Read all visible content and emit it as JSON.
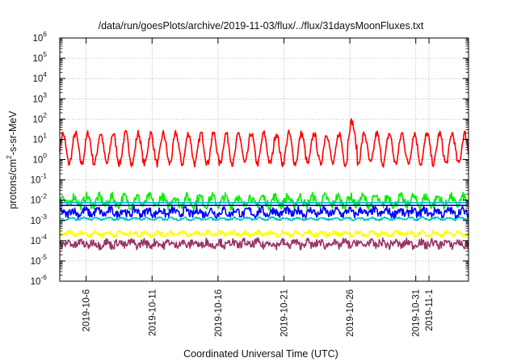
{
  "chart_data": {
    "type": "line",
    "title": "/data/run/goesPlots/archive/2019-11-03/flux/../flux/31daysMoonFluxes.txt",
    "xlabel": "Coordinated Universal Time (UTC)",
    "ylabel": "protons/cm2-s-sr-MeV",
    "ylabel_parts": {
      "main": "protons/cm",
      "sup": "2",
      "rest": "-s-sr-MeV"
    },
    "yscale": "log",
    "ylim": [
      1e-06,
      1000000.0
    ],
    "y_ticks": [
      {
        "base": "10",
        "exp": "-6"
      },
      {
        "base": "10",
        "exp": "-5"
      },
      {
        "base": "10",
        "exp": "-4"
      },
      {
        "base": "10",
        "exp": "-3"
      },
      {
        "base": "10",
        "exp": "-2"
      },
      {
        "base": "10",
        "exp": "-1"
      },
      {
        "base": "10",
        "exp": "0"
      },
      {
        "base": "10",
        "exp": "1"
      },
      {
        "base": "10",
        "exp": "2"
      },
      {
        "base": "10",
        "exp": "3"
      },
      {
        "base": "10",
        "exp": "4"
      },
      {
        "base": "10",
        "exp": "5"
      },
      {
        "base": "10",
        "exp": "6"
      }
    ],
    "xlim": [
      "2019-10-04",
      "2019-11-04"
    ],
    "x_ticks": [
      "2019-10-6",
      "2019-10-11",
      "2019-10-16",
      "2019-10-21",
      "2019-10-26",
      "2019-10-31",
      "2019-11-1"
    ],
    "grid": true,
    "series": [
      {
        "color": "#ff0000",
        "median": 3.5,
        "amplitude_dex": 0.75,
        "noise_dex": 0.18
      },
      {
        "color": "#00ee00",
        "median": 0.009,
        "amplitude_dex": 0.22,
        "noise_dex": 0.22
      },
      {
        "color": "#0000ff",
        "median": 0.0025,
        "amplitude_dex": 0.12,
        "noise_dex": 0.2
      },
      {
        "color": "#00c0c0",
        "median": 0.0012,
        "amplitude_dex": 0.05,
        "noise_dex": 0.05
      },
      {
        "color": "#ffff00",
        "median": 0.00022,
        "amplitude_dex": 0.08,
        "noise_dex": 0.12
      },
      {
        "color": "#993366",
        "median": 7e-05,
        "amplitude_dex": 0.1,
        "noise_dex": 0.2
      }
    ],
    "reference_lines": [
      {
        "color": "#00c0c0",
        "value": 0.0075
      },
      {
        "color": "#0000ff",
        "value": 0.0055
      }
    ]
  }
}
